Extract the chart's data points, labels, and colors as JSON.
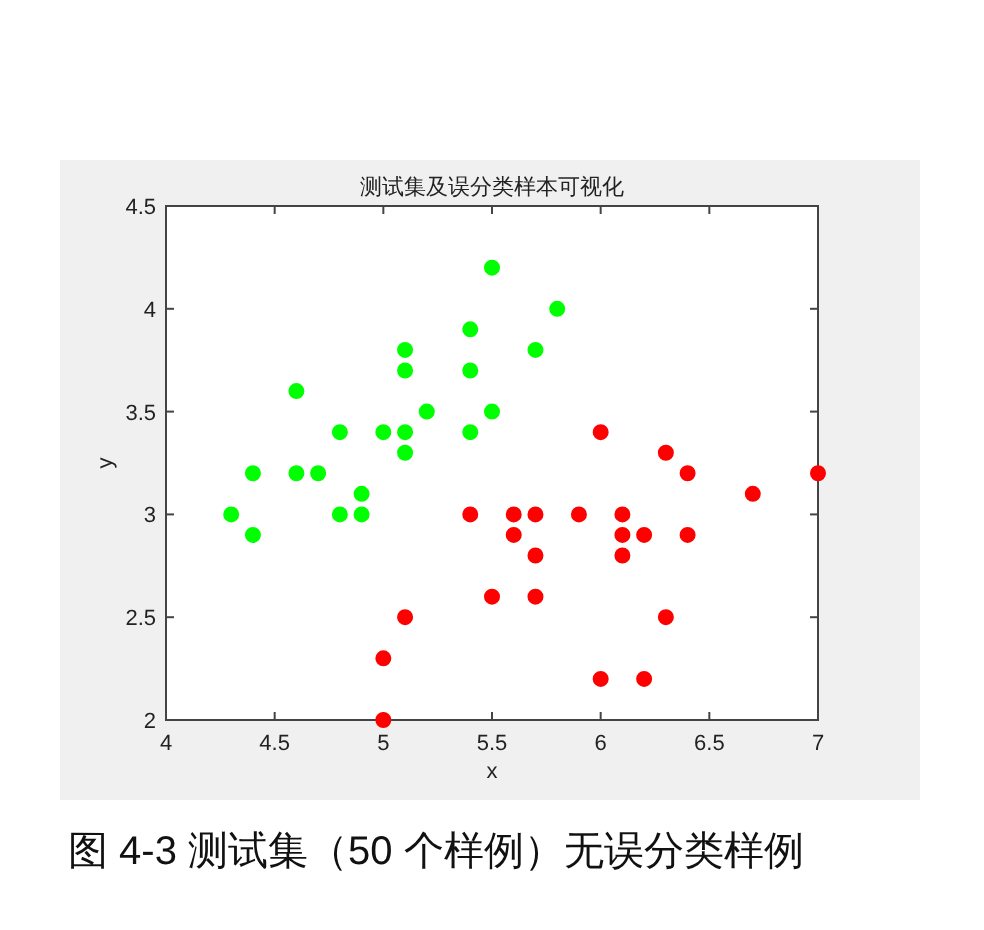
{
  "chart_data": {
    "type": "scatter",
    "title": "测试集及误分类样本可视化",
    "xlabel": "x",
    "ylabel": "y",
    "xlim": [
      4,
      7
    ],
    "ylim": [
      2,
      4.5
    ],
    "xticks": [
      4,
      4.5,
      5,
      5.5,
      6,
      6.5,
      7
    ],
    "yticks": [
      2,
      2.5,
      3,
      3.5,
      4,
      4.5
    ],
    "grid": false,
    "marker": "circle",
    "annotations": [
      "图 4-3 测试集（50 个样例）无误分类样例"
    ],
    "series": [
      {
        "color": "#00ff00",
        "x": [
          4.3,
          4.4,
          4.4,
          4.6,
          4.6,
          4.7,
          4.8,
          4.8,
          4.9,
          4.9,
          5.0,
          5.1,
          5.1,
          5.1,
          5.1,
          5.2,
          5.4,
          5.4,
          5.4,
          5.5,
          5.5,
          5.7,
          5.8
        ],
        "values": [
          3.0,
          3.2,
          2.9,
          3.6,
          3.2,
          3.2,
          3.4,
          3.0,
          3.1,
          3.0,
          3.4,
          3.8,
          3.7,
          3.4,
          3.3,
          3.5,
          3.9,
          3.7,
          3.4,
          4.2,
          3.5,
          3.8,
          4.0
        ]
      },
      {
        "color": "#ff0000",
        "x": [
          5.4,
          5.5,
          5.1,
          5.0,
          5.0,
          6.0,
          6.3,
          6.4,
          7.0,
          6.7,
          5.6,
          5.7,
          5.9,
          6.1,
          5.6,
          6.1,
          6.2,
          6.4,
          5.7,
          6.1,
          5.7,
          6.3,
          6.0,
          6.2
        ],
        "values": [
          3.0,
          2.6,
          2.5,
          2.3,
          2.0,
          3.4,
          3.3,
          3.2,
          3.2,
          3.1,
          3.0,
          3.0,
          3.0,
          3.0,
          2.9,
          2.9,
          2.9,
          2.9,
          2.8,
          2.8,
          2.6,
          2.5,
          2.2,
          2.2
        ]
      }
    ]
  }
}
